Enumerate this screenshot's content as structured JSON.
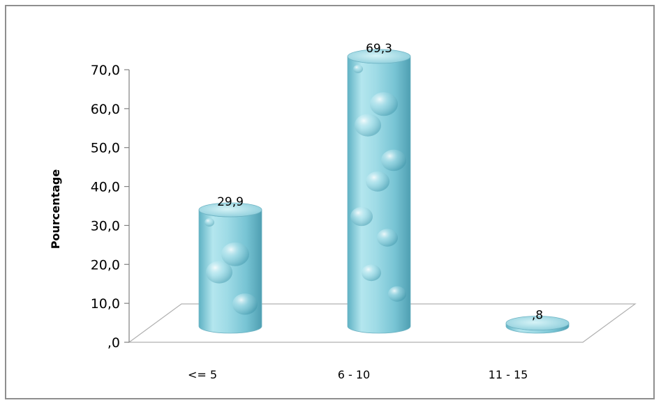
{
  "chart_data": {
    "type": "bar",
    "style": "3d-cylinder",
    "title": "",
    "xlabel": "",
    "ylabel": "Pourcentage",
    "categories": [
      "<= 5",
      "6 - 10",
      "11 - 15"
    ],
    "values": [
      29.9,
      69.3,
      0.8
    ],
    "value_labels": [
      "29,9",
      "69,3",
      ",8"
    ],
    "ylim": [
      0,
      70
    ],
    "yticks": [
      0,
      10,
      20,
      30,
      40,
      50,
      60,
      70
    ],
    "ytick_labels": [
      ",0",
      "10,0",
      "20,0",
      "30,0",
      "40,0",
      "50,0",
      "60,0",
      "70,0"
    ],
    "grid": false,
    "legend": "none",
    "colors": {
      "bar_fill": "#8fd0dc",
      "bar_dark": "#4aa0b4",
      "bar_light": "#d8f2f6",
      "floor_line": "#b0b0b0",
      "axis_line": "#808080",
      "frame": "#8e8e8e"
    }
  }
}
